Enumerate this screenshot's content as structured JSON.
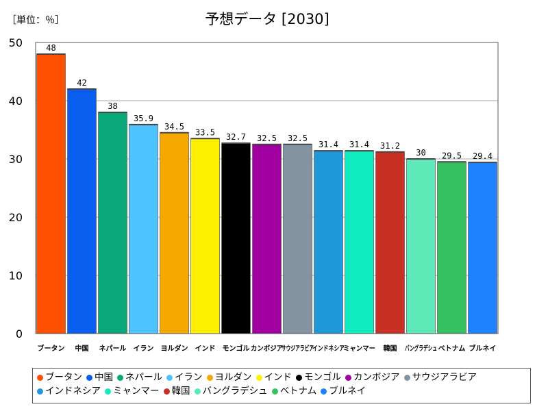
{
  "chart_data": {
    "type": "bar",
    "title": "予想データ [2030]",
    "unit_label": "［単位：％］",
    "xlabel": "",
    "ylabel": "",
    "ylim": [
      0,
      50
    ],
    "yticks": [
      0,
      10,
      20,
      30,
      40,
      50
    ],
    "grid": true,
    "legend_position": "bottom",
    "categories": [
      "ブータン",
      "中国",
      "ネパール",
      "イラン",
      "ヨルダン",
      "インド",
      "モンゴル",
      "カンボジア",
      "サウジアラビア",
      "インドネシア",
      "ミャンマー",
      "韓国",
      "バングラデシュ",
      "ベトナム",
      "ブルネイ"
    ],
    "axis_labels": [
      "ブータン",
      "中国",
      "ネパール",
      "イラン",
      "ヨルダン",
      "インド",
      "モンゴル",
      "カンボジア",
      "サウジアラビア",
      "インドネシア",
      "ミャンマー",
      "韓国",
      "バングラデシュ",
      "ベトナム",
      "ブルネイ"
    ],
    "values": [
      48,
      42,
      38,
      35.9,
      34.5,
      33.5,
      32.7,
      32.5,
      32.5,
      31.4,
      31.4,
      31.2,
      30,
      29.5,
      29.4
    ],
    "value_labels": [
      "48",
      "42",
      "38",
      "35.9",
      "34.5",
      "33.5",
      "32.7",
      "32.5",
      "32.5",
      "31.4",
      "31.4",
      "31.2",
      "30",
      "29.5",
      "29.4"
    ],
    "colors": [
      "#ff5000",
      "#0a5ff0",
      "#0aa878",
      "#4fc3ff",
      "#f5a800",
      "#fff000",
      "#000000",
      "#a0009f",
      "#8493a0",
      "#1e98d8",
      "#10ebc0",
      "#c83025",
      "#5fe8b8",
      "#37c060",
      "#1e82ff"
    ]
  }
}
